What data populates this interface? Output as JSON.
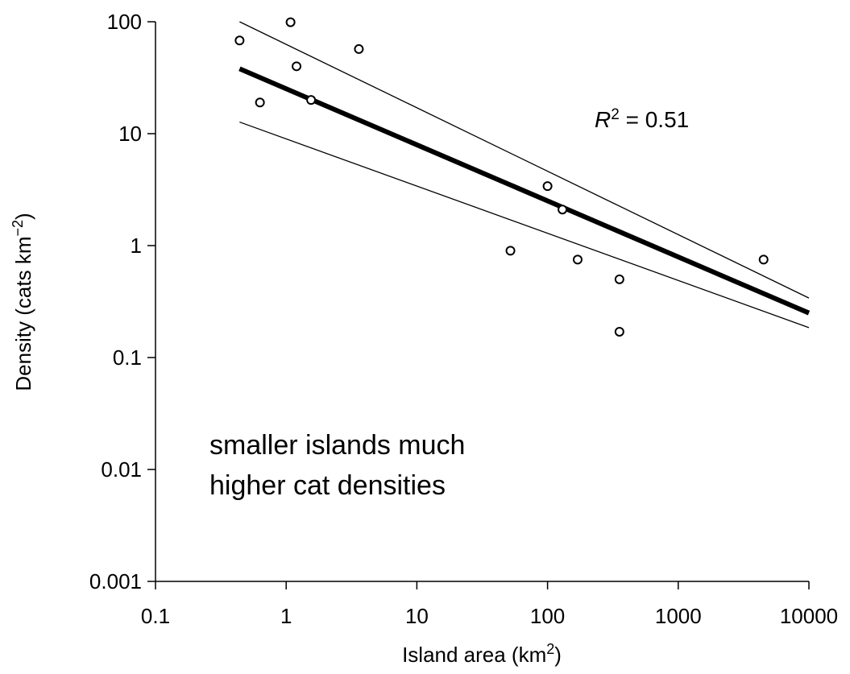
{
  "chart_data": {
    "type": "scatter",
    "title": "",
    "xlabel": "Island area (km",
    "xlabel_sup": "2",
    "xlabel_tail": ")",
    "ylabel": "Density (cats km",
    "ylabel_sup": "−2",
    "ylabel_tail": ")",
    "x_scale": "log",
    "y_scale": "log",
    "xlim": [
      0.1,
      10000
    ],
    "ylim": [
      0.001,
      100
    ],
    "x_ticks": [
      0.1,
      1,
      10,
      100,
      1000,
      10000
    ],
    "x_tick_labels": [
      "0.1",
      "1",
      "10",
      "100",
      "1000",
      "10000"
    ],
    "y_ticks": [
      0.001,
      0.01,
      0.1,
      1,
      10,
      100
    ],
    "y_tick_labels": [
      "0.001",
      "0.01",
      "0.1",
      "1",
      "10",
      "100"
    ],
    "grid": false,
    "series": [
      {
        "kind": "points",
        "marker": "open-circle",
        "x": [
          0.44,
          1.08,
          1.2,
          0.63,
          1.55,
          3.6,
          100,
          130,
          52,
          170,
          355,
          355,
          4500
        ],
        "y": [
          68,
          99,
          40,
          19,
          20,
          57,
          3.4,
          2.1,
          0.9,
          0.75,
          0.5,
          0.17,
          0.75
        ]
      },
      {
        "kind": "fit",
        "line_weight": "thick",
        "x": [
          0.44,
          10000
        ],
        "y": [
          38,
          0.25
        ]
      },
      {
        "kind": "upper-bound",
        "line_weight": "thin",
        "x": [
          0.44,
          10000
        ],
        "y": [
          100,
          0.34
        ]
      },
      {
        "kind": "lower-bound",
        "line_weight": "thin",
        "x": [
          0.44,
          10000
        ],
        "y": [
          12.7,
          0.185
        ]
      }
    ],
    "annotations": {
      "r2_var": "R",
      "r2_sup": "2",
      "r2_value": " = 0.51",
      "note_line1": "smaller islands much",
      "note_line2": "higher cat densities"
    },
    "colors": {
      "ink": "#000000",
      "background": "#ffffff"
    }
  }
}
